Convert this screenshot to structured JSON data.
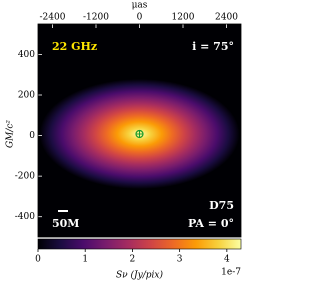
{
  "chart_data": {
    "type": "image",
    "x_label": "μas",
    "y_label": "GM/c²",
    "xlim": [
      -2800,
      2800
    ],
    "xticks": [
      -2400,
      -1200,
      0,
      1200,
      2400
    ],
    "ylim": [
      -500,
      550
    ],
    "yticks": [
      -400,
      -200,
      0,
      200,
      400
    ],
    "annotations": {
      "frequency": "22 GHz",
      "inclination": "i = 75°",
      "model": "D75",
      "position_angle": "PA = 0°",
      "scale_bar": "50M"
    },
    "colorbar": {
      "label": "Sν (Jy/pix)",
      "clim": [
        0,
        4.3
      ],
      "ticks": [
        0,
        1,
        2,
        3,
        4
      ],
      "multiplier": "1e-7",
      "colormap": [
        "#000004",
        "#1b0c41",
        "#4a0c6b",
        "#781c6d",
        "#a52c60",
        "#cf4446",
        "#ed6925",
        "#fb9b06",
        "#f7d13d",
        "#fcffa4"
      ]
    }
  }
}
